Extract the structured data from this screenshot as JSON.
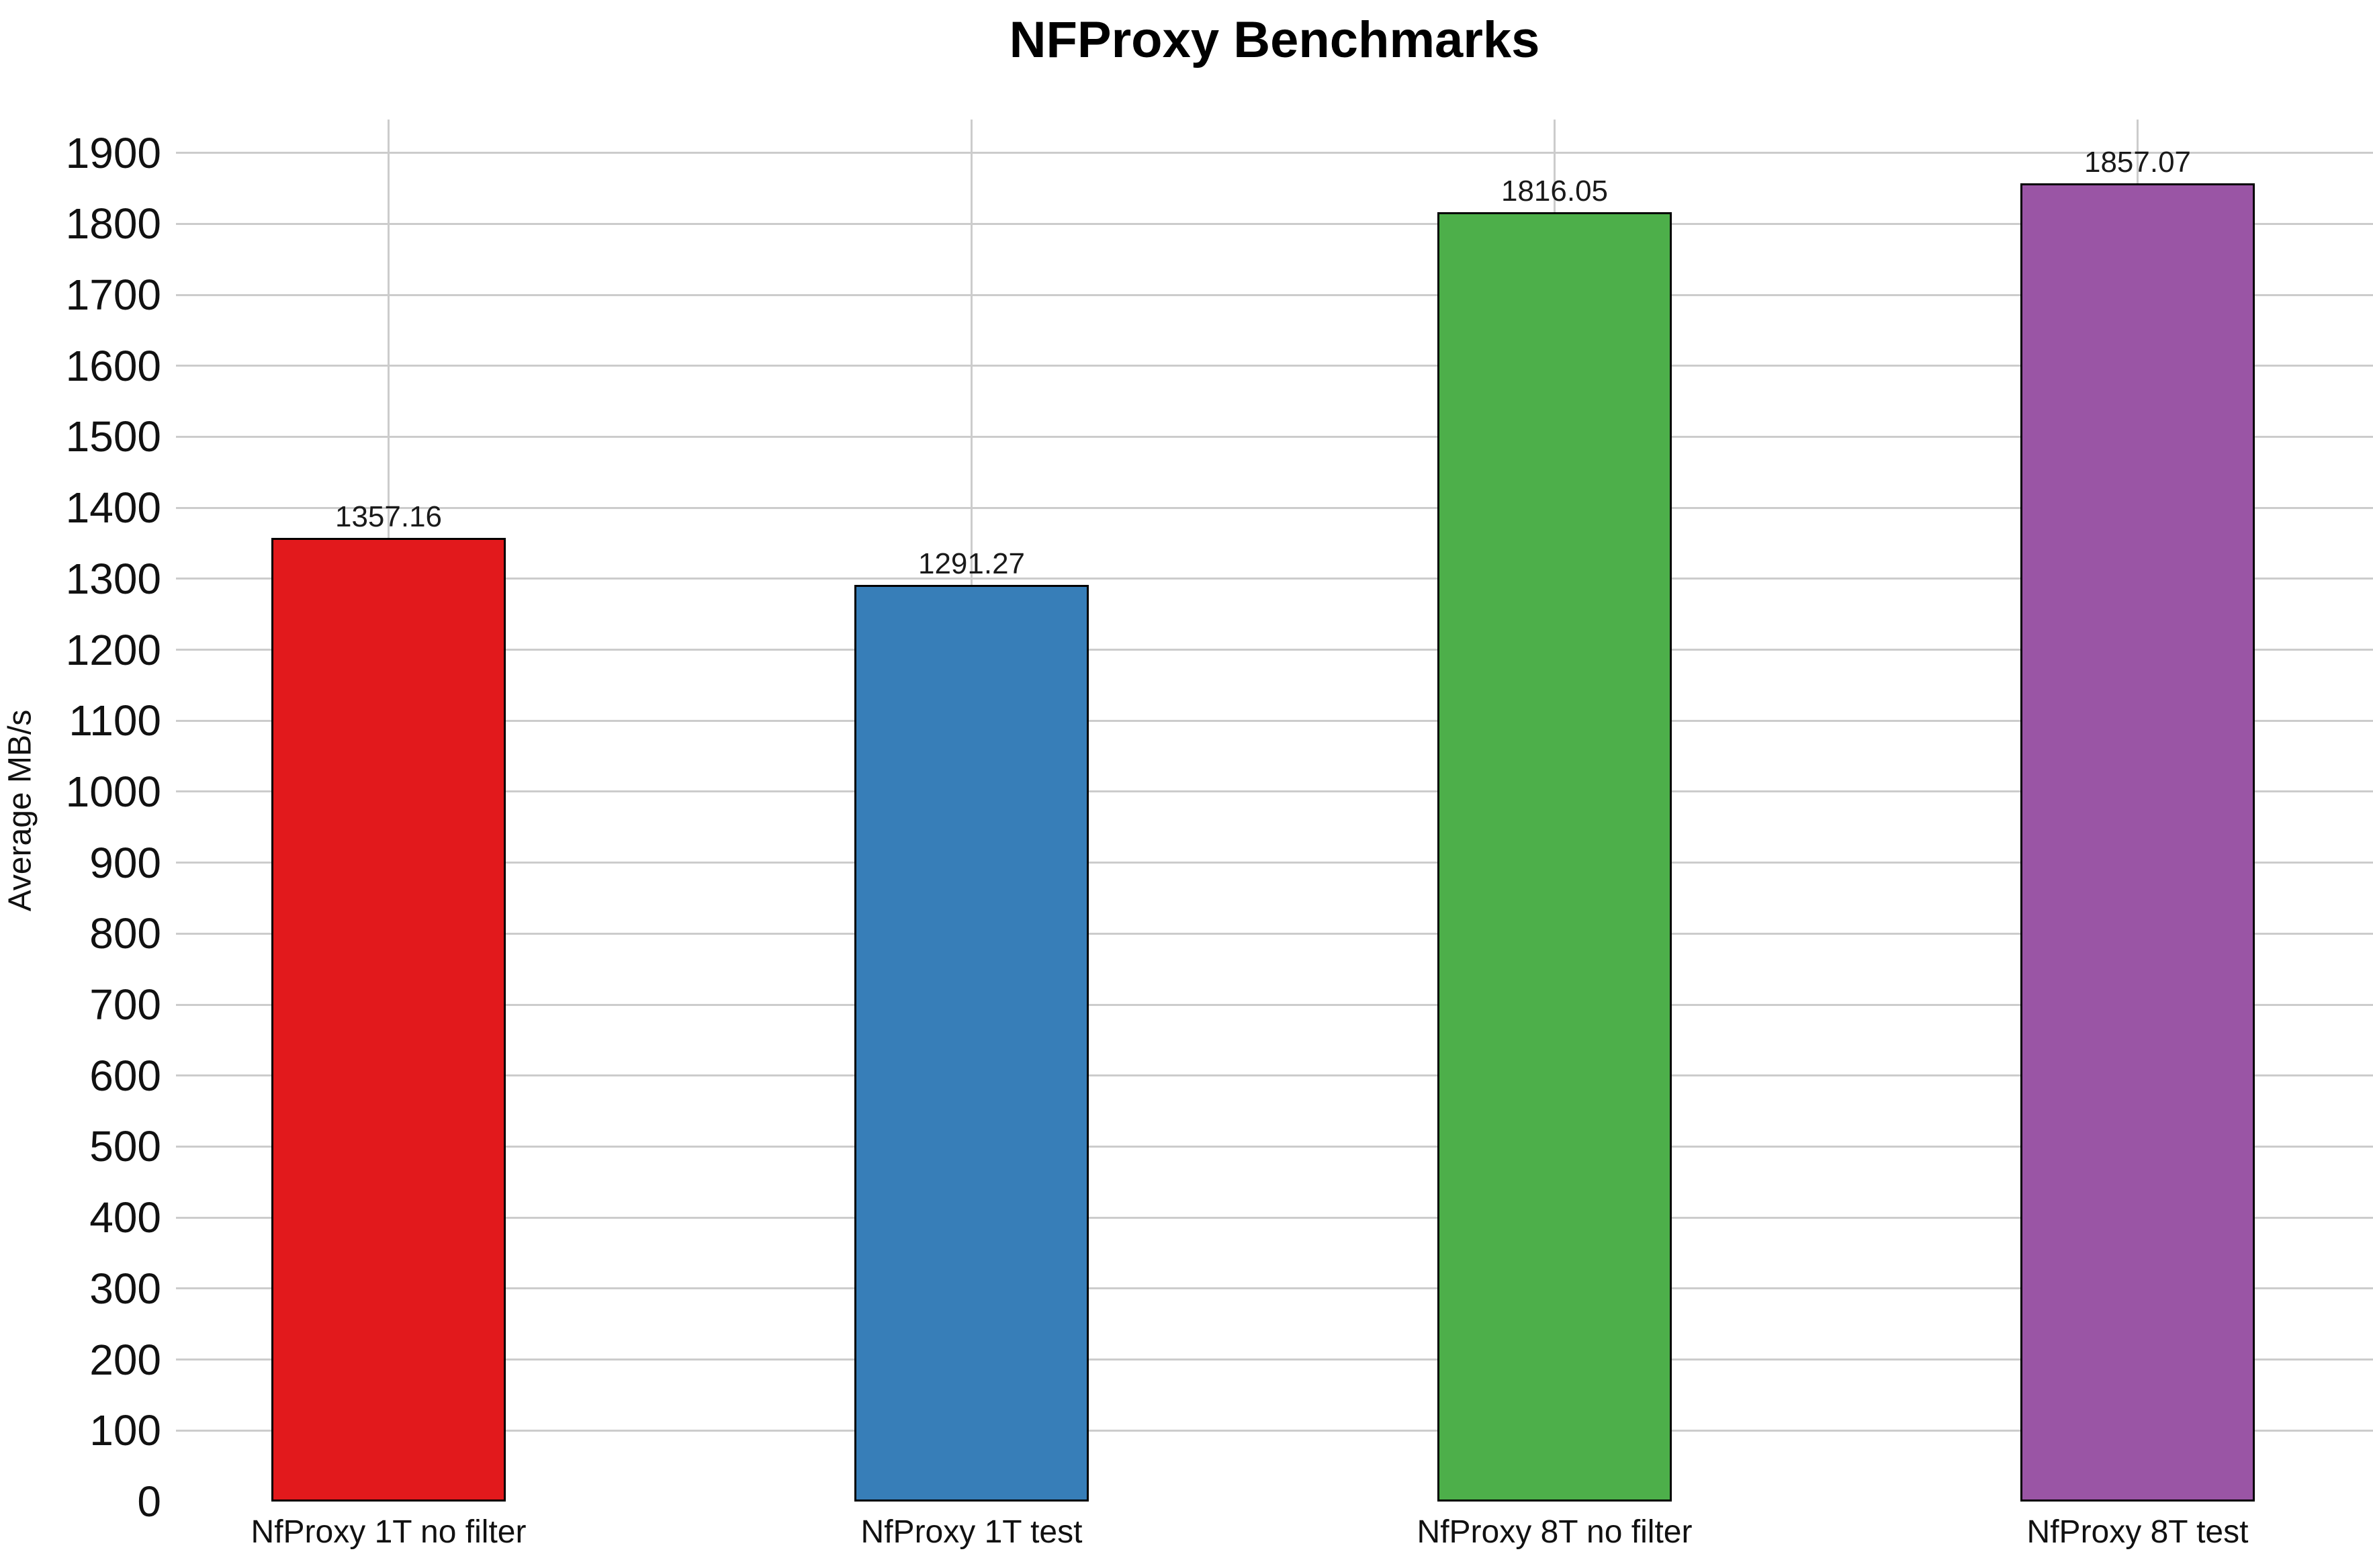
{
  "chart_data": {
    "type": "bar",
    "title": "NFProxy Benchmarks",
    "xlabel": "",
    "ylabel": "Average MB/s",
    "categories": [
      "NfProxy 1T no filter",
      "NfProxy 1T test",
      "NfProxy 8T no filter",
      "NfProxy 8T test"
    ],
    "values": [
      1357.16,
      1291.27,
      1816.05,
      1857.07
    ],
    "bar_value_labels": [
      "1357.16",
      "1291.27",
      "1816.05",
      "1857.07"
    ],
    "bar_colors": [
      "#e2191c",
      "#377eb8",
      "#4daf4a",
      "#9a55a5"
    ],
    "bar_border_color": "#000000",
    "grid": true,
    "grid_color": "#cccccc",
    "legend_position": "none",
    "y_ticks": [
      0,
      100,
      200,
      300,
      400,
      500,
      600,
      700,
      800,
      900,
      1000,
      1100,
      1200,
      1300,
      1400,
      1500,
      1600,
      1700,
      1800,
      1900
    ],
    "ylim": [
      0,
      1947
    ],
    "background_color": "#ffffff"
  }
}
